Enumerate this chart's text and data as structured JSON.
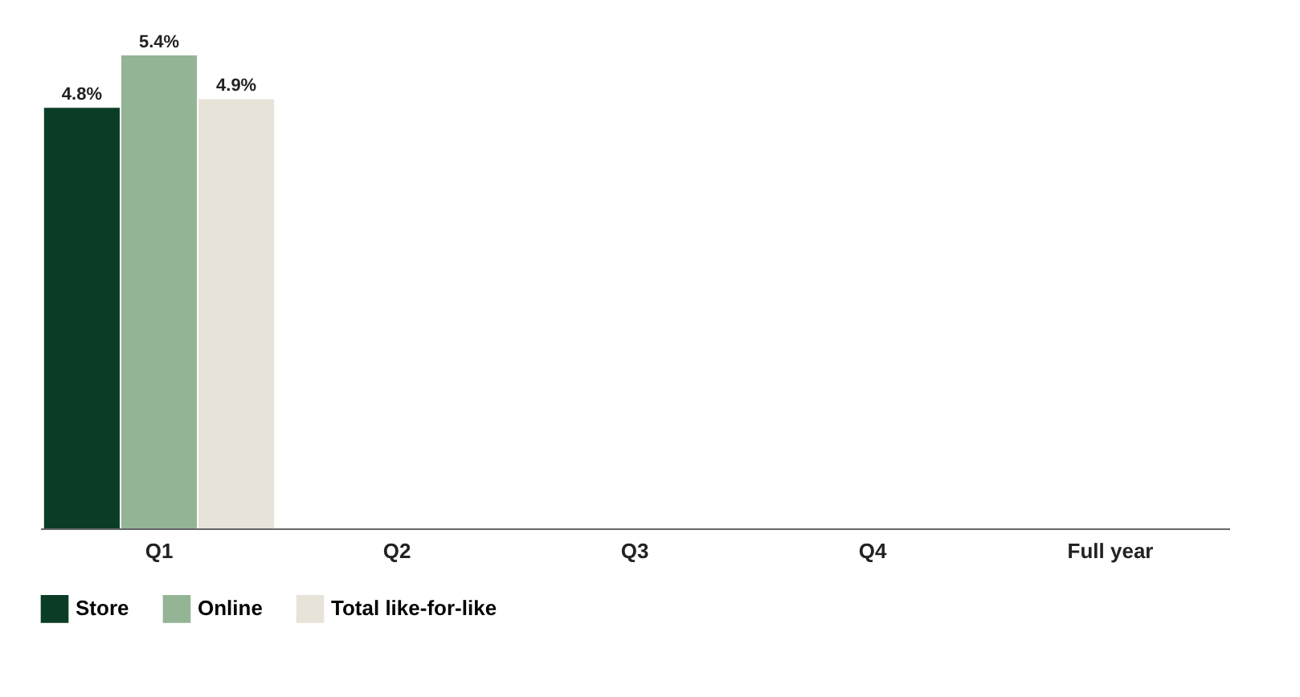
{
  "chart_data": {
    "type": "bar",
    "categories": [
      "Q1",
      "Q2",
      "Q3",
      "Q4",
      "Full year"
    ],
    "series": [
      {
        "name": "Store",
        "color": "#0b3d26",
        "values": [
          4.8,
          null,
          null,
          null,
          null
        ],
        "value_labels": [
          "4.8%",
          null,
          null,
          null,
          null
        ]
      },
      {
        "name": "Online",
        "color": "#93b596",
        "values": [
          5.4,
          null,
          null,
          null,
          null
        ],
        "value_labels": [
          "5.4%",
          null,
          null,
          null,
          null
        ]
      },
      {
        "name": "Total like-for-like",
        "color": "#e8e3d9",
        "values": [
          4.9,
          null,
          null,
          null,
          null
        ],
        "value_labels": [
          "4.9%",
          null,
          null,
          null,
          null
        ]
      }
    ],
    "legend": "bottom",
    "grid": false
  }
}
